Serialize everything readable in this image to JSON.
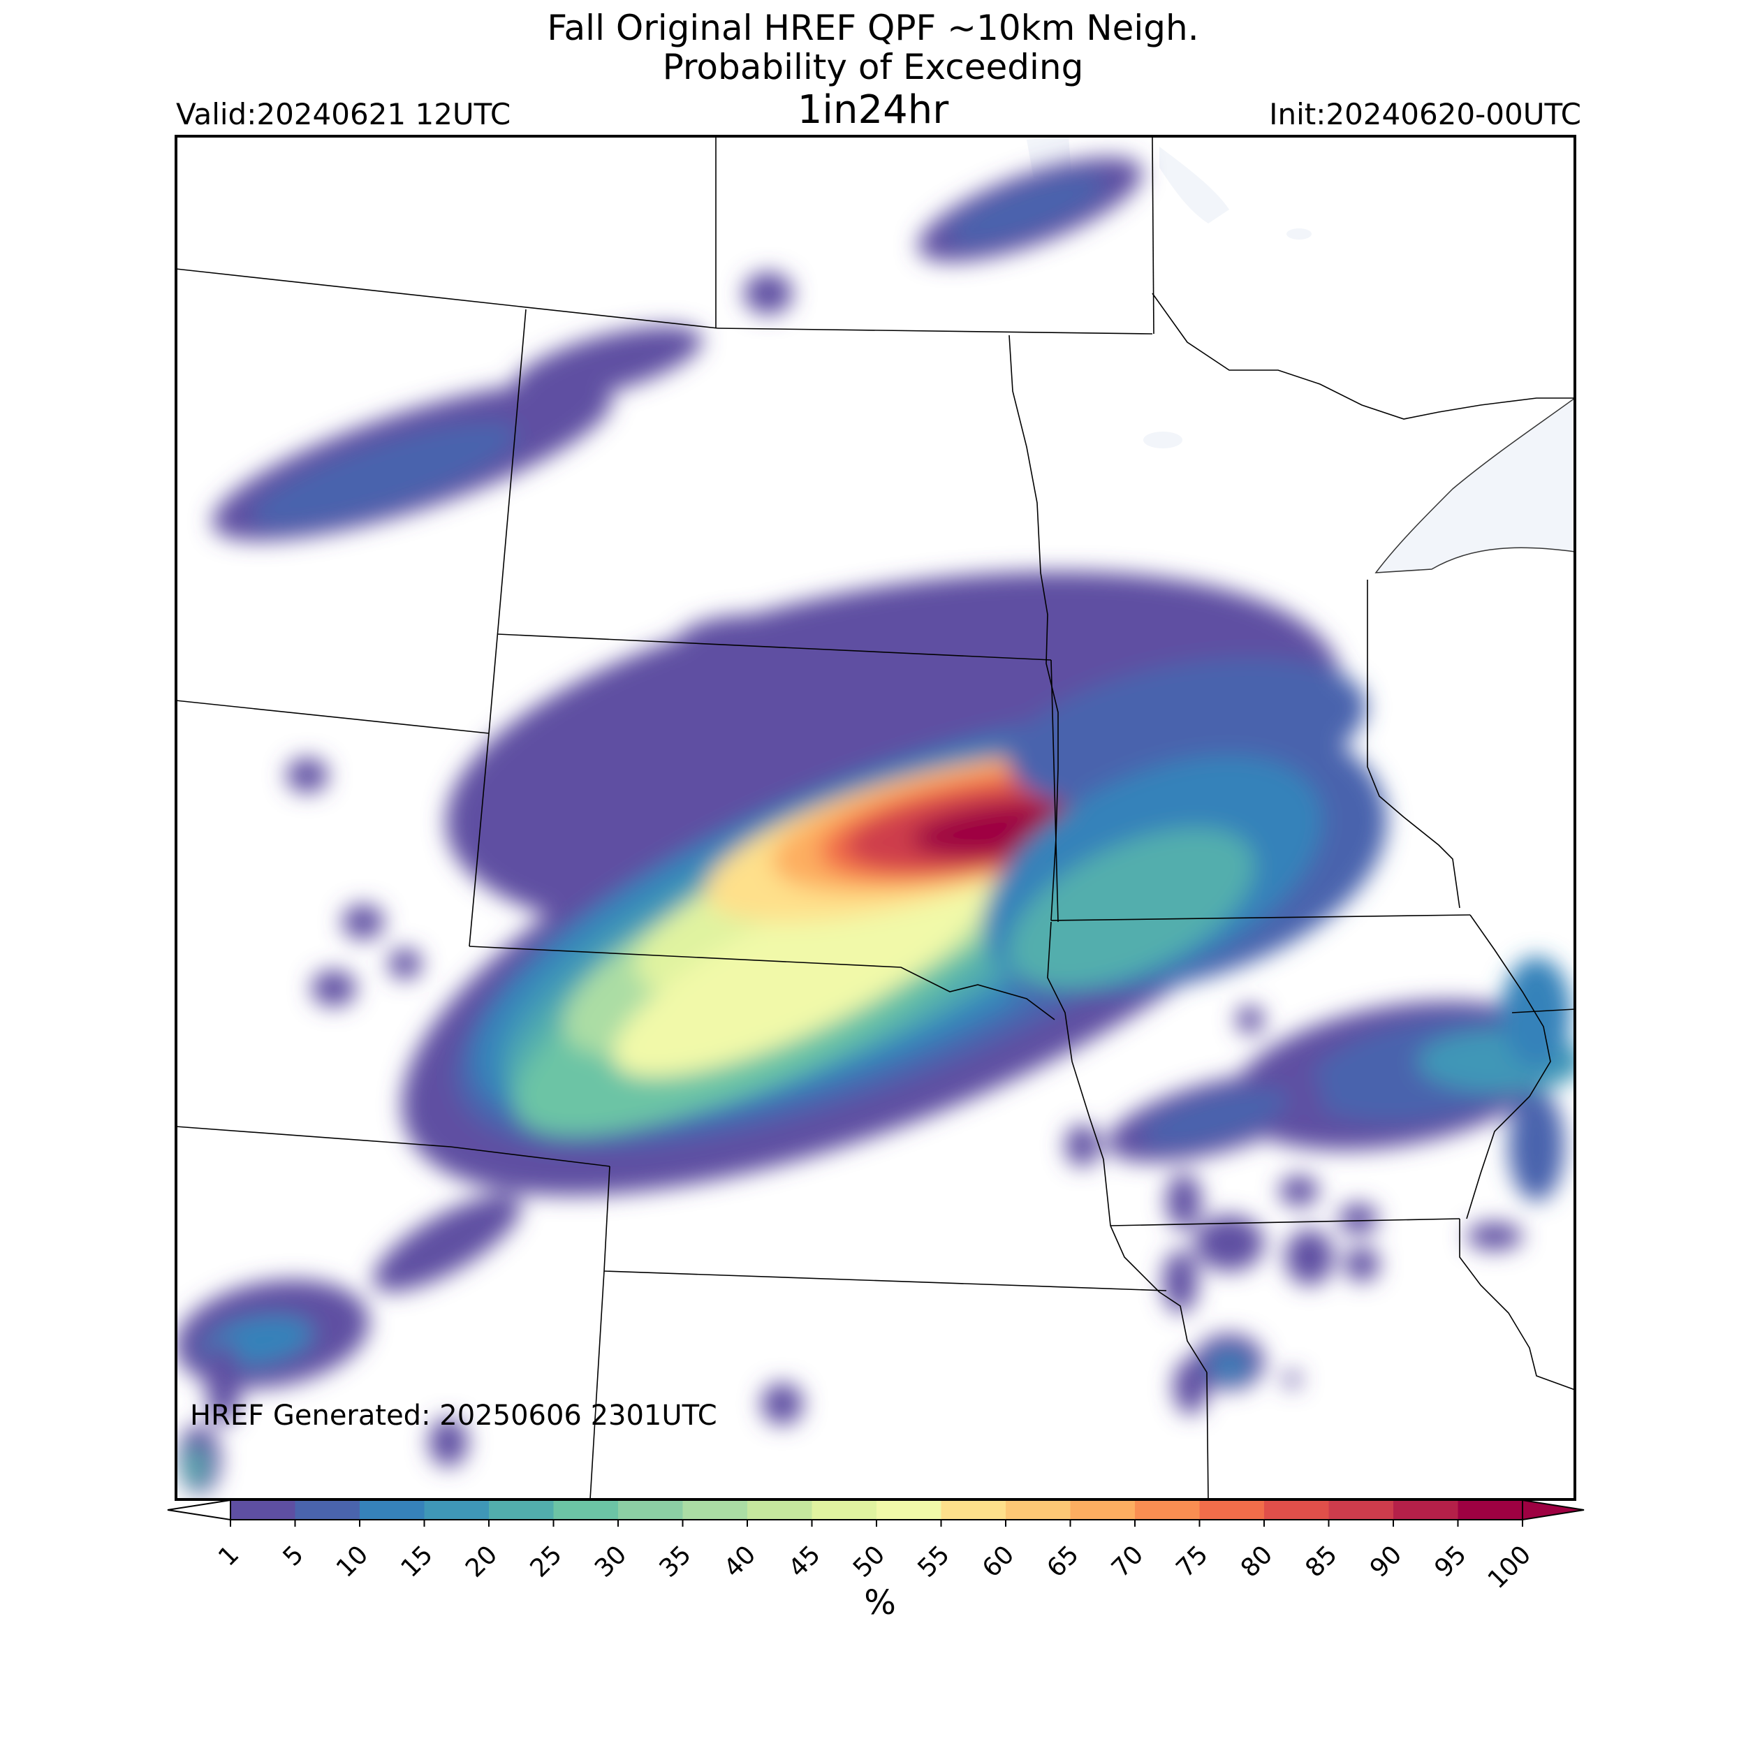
{
  "title": {
    "line1": "Fall Original HREF QPF ~10km Neigh.",
    "line2": "Probability of Exceeding",
    "line3": "1in24hr"
  },
  "valid_label": "Valid:20240621 12UTC",
  "init_label": "Init:20240620-00UTC",
  "generated_label": "HREF Generated: 20250606 2301UTC",
  "colorbar": {
    "unit": "%",
    "ticks": [
      "1",
      "5",
      "10",
      "15",
      "20",
      "25",
      "30",
      "35",
      "40",
      "45",
      "50",
      "55",
      "60",
      "65",
      "70",
      "75",
      "80",
      "85",
      "90",
      "95",
      "100"
    ],
    "colors": [
      "#5e4fa2",
      "#4a64ad",
      "#3682ba",
      "#3f97b7",
      "#52aead",
      "#6cc4a5",
      "#8ccfa4",
      "#abdda4",
      "#c5e79e",
      "#e0f3a0",
      "#f1f9a9",
      "#fee08b",
      "#fdc875",
      "#fdae61",
      "#f98e52",
      "#f26d4a",
      "#e04f4a",
      "#ce3c4c",
      "#b52049",
      "#9e0142"
    ],
    "under_color": "#ffffff",
    "over_color": "#9e0142"
  },
  "map": {
    "background": "#ffffff",
    "water_color": "#f2f5fa",
    "border_color": "#000000"
  }
}
